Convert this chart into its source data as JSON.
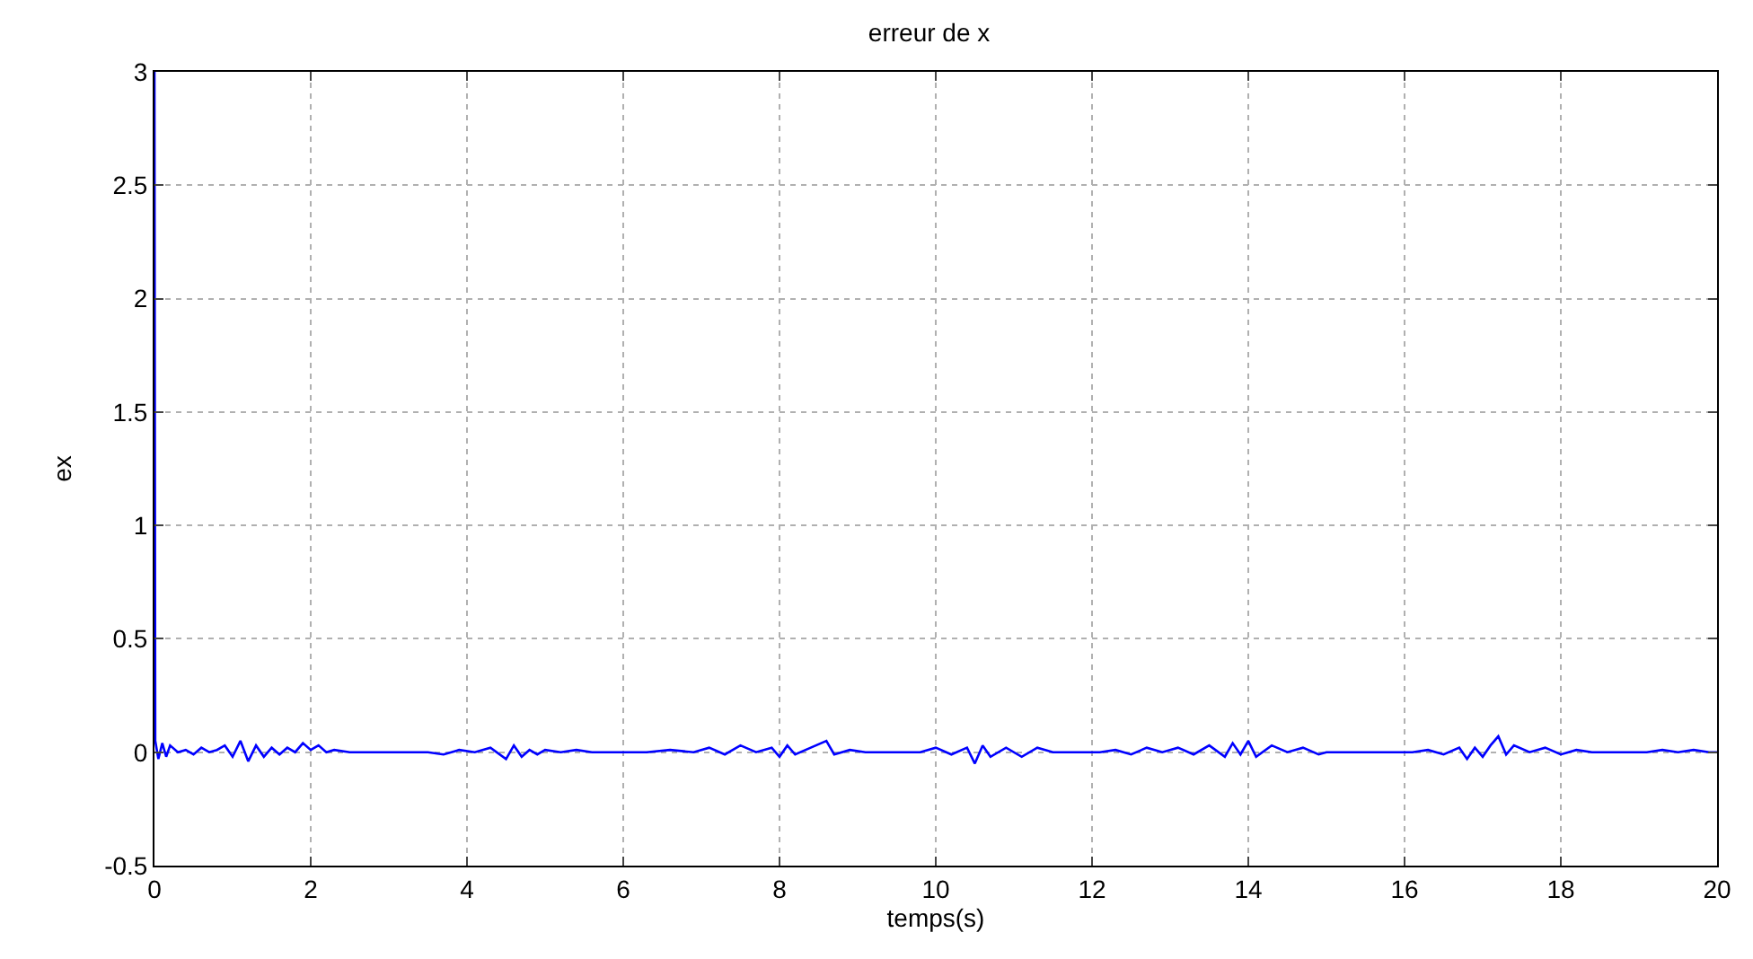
{
  "chart_data": {
    "type": "line",
    "title": "erreur de x",
    "xlabel": "temps(s)",
    "ylabel": "ex",
    "xlim": [
      0,
      20
    ],
    "ylim": [
      -0.5,
      3
    ],
    "xticks": [
      0,
      2,
      4,
      6,
      8,
      10,
      12,
      14,
      16,
      18,
      20
    ],
    "yticks": [
      -0.5,
      0,
      0.5,
      1,
      1.5,
      2,
      2.5,
      3
    ],
    "grid": true,
    "marker": "none",
    "line_style": "solid",
    "series": [
      {
        "color": "#0000ff",
        "x": [
          0,
          0.01,
          0.05,
          0.1,
          0.15,
          0.2,
          0.3,
          0.4,
          0.5,
          0.6,
          0.7,
          0.8,
          0.9,
          1.0,
          1.1,
          1.2,
          1.3,
          1.4,
          1.5,
          1.6,
          1.7,
          1.8,
          1.9,
          2.0,
          2.1,
          2.2,
          2.3,
          2.5,
          2.7,
          2.9,
          3.1,
          3.3,
          3.5,
          3.7,
          3.9,
          4.1,
          4.3,
          4.5,
          4.6,
          4.7,
          4.8,
          4.9,
          5.0,
          5.2,
          5.4,
          5.6,
          5.8,
          6.0,
          6.3,
          6.6,
          6.9,
          7.1,
          7.3,
          7.5,
          7.7,
          7.9,
          8.0,
          8.1,
          8.2,
          8.4,
          8.6,
          8.7,
          8.9,
          9.1,
          9.3,
          9.6,
          9.8,
          10.0,
          10.2,
          10.4,
          10.5,
          10.6,
          10.7,
          10.9,
          11.1,
          11.3,
          11.5,
          11.8,
          12.1,
          12.3,
          12.5,
          12.7,
          12.9,
          13.1,
          13.3,
          13.5,
          13.7,
          13.8,
          13.9,
          14.0,
          14.1,
          14.3,
          14.5,
          14.7,
          14.9,
          15.0,
          15.5,
          16.1,
          16.3,
          16.5,
          16.7,
          16.8,
          16.9,
          17.0,
          17.1,
          17.2,
          17.3,
          17.4,
          17.6,
          17.8,
          18.0,
          18.2,
          18.4,
          18.7,
          19.1,
          19.3,
          19.5,
          19.7,
          19.9,
          20.0
        ],
        "values": [
          3,
          0.05,
          -0.03,
          0.04,
          -0.02,
          0.03,
          0.0,
          0.01,
          -0.01,
          0.02,
          0.0,
          0.01,
          0.03,
          -0.02,
          0.05,
          -0.04,
          0.03,
          -0.02,
          0.02,
          -0.01,
          0.02,
          0.0,
          0.04,
          0.01,
          0.03,
          0.0,
          0.01,
          0.0,
          0.0,
          0.0,
          0.0,
          0.0,
          0.0,
          -0.01,
          0.01,
          0.0,
          0.02,
          -0.03,
          0.03,
          -0.02,
          0.01,
          -0.01,
          0.01,
          0.0,
          0.01,
          0.0,
          0.0,
          0.0,
          0.0,
          0.01,
          0.0,
          0.02,
          -0.01,
          0.03,
          0.0,
          0.02,
          -0.02,
          0.03,
          -0.01,
          0.02,
          0.05,
          -0.01,
          0.01,
          0.0,
          0.0,
          0.0,
          0.0,
          0.02,
          -0.01,
          0.02,
          -0.05,
          0.03,
          -0.02,
          0.02,
          -0.02,
          0.02,
          0.0,
          0.0,
          0.0,
          0.01,
          -0.01,
          0.02,
          0.0,
          0.02,
          -0.01,
          0.03,
          -0.02,
          0.04,
          -0.01,
          0.05,
          -0.02,
          0.03,
          0.0,
          0.02,
          -0.01,
          0.0,
          0.0,
          0.0,
          0.01,
          -0.01,
          0.02,
          -0.03,
          0.02,
          -0.02,
          0.03,
          0.07,
          -0.01,
          0.03,
          0.0,
          0.02,
          -0.01,
          0.01,
          0.0,
          0.0,
          0.0,
          0.01,
          0.0,
          0.01,
          0.0,
          0.0
        ]
      }
    ]
  }
}
